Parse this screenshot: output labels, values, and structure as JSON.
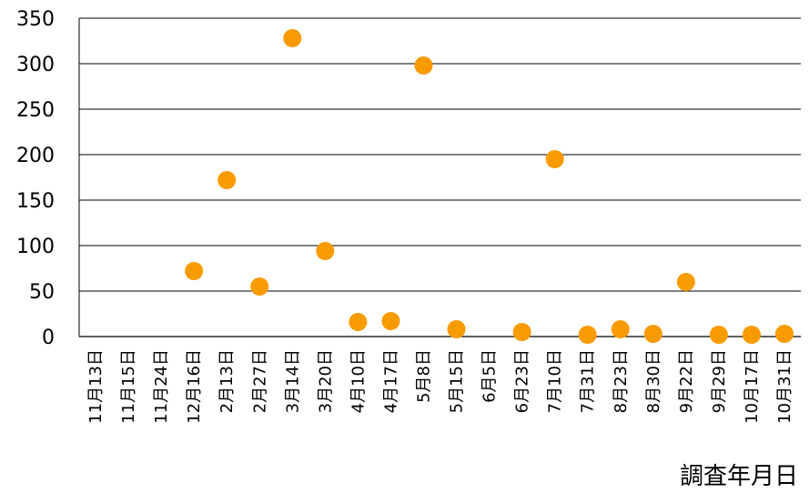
{
  "chart_data": {
    "type": "scatter",
    "categories": [
      "11月13日",
      "11月15日",
      "11月24日",
      "12月16日",
      "2月13日",
      "2月27日",
      "3月14日",
      "3月20日",
      "4月10日",
      "4月17日",
      "5月8日",
      "5月15日",
      "6月5日",
      "6月23日",
      "7月10日",
      "7月31日",
      "8月23日",
      "8月30日",
      "9月22日",
      "9月29日",
      "10月17日",
      "10月31日"
    ],
    "values": [
      null,
      null,
      null,
      72,
      172,
      55,
      328,
      94,
      16,
      17,
      298,
      8,
      null,
      5,
      195,
      2,
      8,
      3,
      60,
      2,
      2,
      3
    ],
    "ylim": [
      0,
      350
    ],
    "yticks": [
      0,
      50,
      100,
      150,
      200,
      250,
      300,
      350
    ],
    "xlabel": "調査年月日",
    "ylabel": "",
    "title": "",
    "grid": true,
    "marker_color": "#f89b00"
  }
}
